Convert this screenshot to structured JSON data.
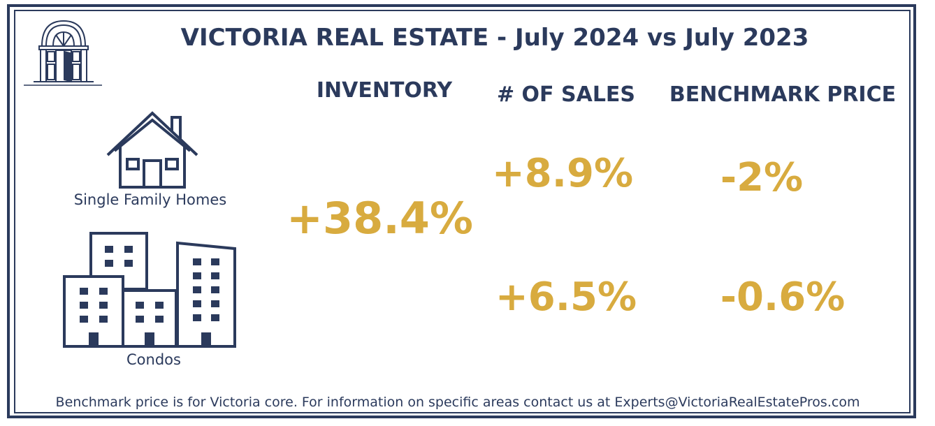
{
  "title": "VICTORIA REAL ESTATE - July 2024 vs July 2023",
  "columns": {
    "inventory": "INVENTORY",
    "sales": "# OF SALES",
    "benchmark": "BENCHMARK PRICE"
  },
  "rows": {
    "single_family": {
      "label": "Single Family Homes",
      "icon": "house-icon",
      "sales": "+8.9%",
      "benchmark": "-2%"
    },
    "condos": {
      "label": "Condos",
      "icon": "buildings-icon",
      "sales": "+6.5%",
      "benchmark": "-0.6%"
    }
  },
  "inventory_combined": "+38.4%",
  "footer": "Benchmark price is for Victoria core. For information on specific areas contact us at Experts@VictoriaRealEstatePros.com",
  "colors": {
    "navy": "#2b3a5c",
    "gold": "#d8ab3f"
  },
  "logo_icon": "door-logo-icon"
}
